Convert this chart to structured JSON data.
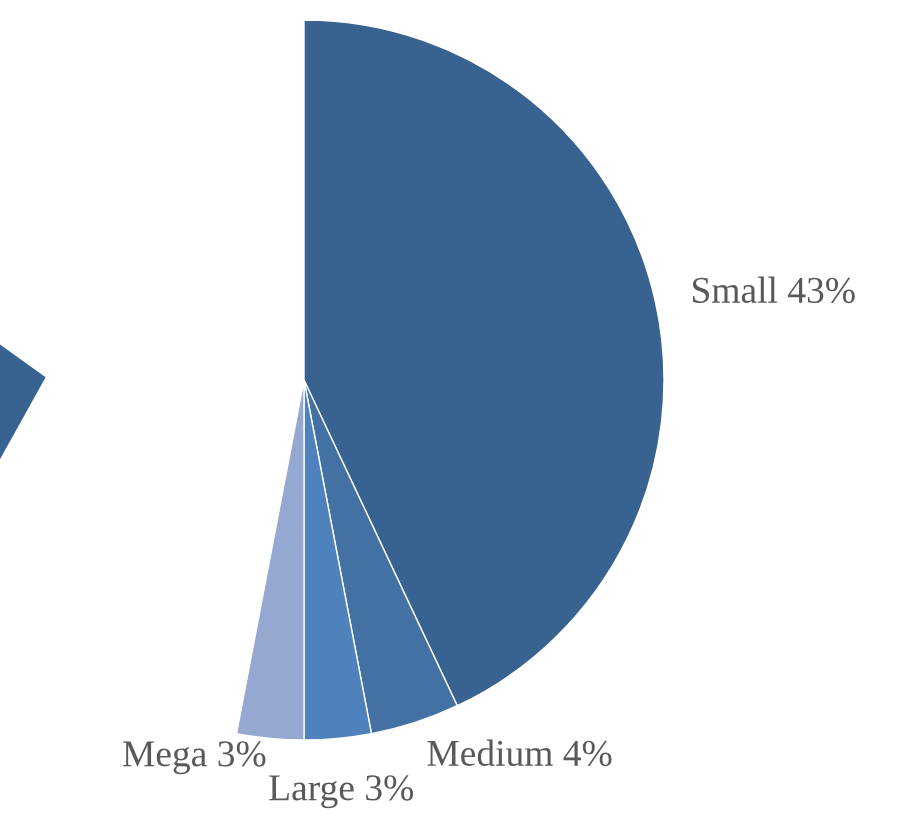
{
  "chart_data": {
    "type": "pie",
    "categories": [
      "Small",
      "Medium",
      "Large",
      "Mega"
    ],
    "values": [
      43,
      4,
      3,
      3
    ],
    "value_labels": [
      "43%",
      "4%",
      "3%",
      "3%"
    ],
    "colors": [
      "#38628f",
      "#4471a3",
      "#4f81bd",
      "#95a8d1"
    ],
    "legend": false
  }
}
